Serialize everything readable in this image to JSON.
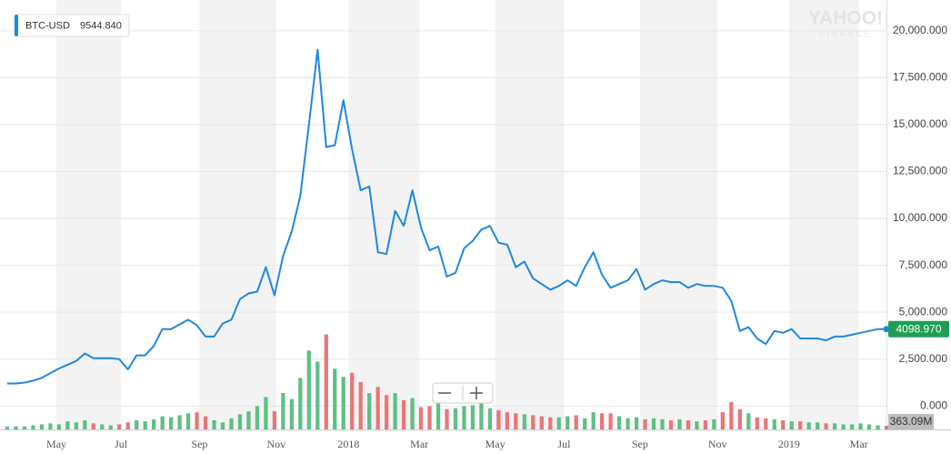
{
  "chart_data": {
    "type": "line",
    "series": [
      {
        "name": "BTC-USD",
        "color": "#1f88e0",
        "legend_value": {
          "value": 9544.84,
          "label": "9544.840"
        },
        "values": [
          1200,
          1200,
          1250,
          1350,
          1500,
          1750,
          2000,
          2200,
          2400,
          2800,
          2550,
          2550,
          2550,
          2500,
          1950,
          2700,
          2700,
          3200,
          4100,
          4100,
          4350,
          4600,
          4300,
          3700,
          3700,
          4400,
          4600,
          5700,
          6000,
          6100,
          7400,
          5900,
          8000,
          9300,
          11200,
          15000,
          19000,
          13800,
          13900,
          16300,
          13700,
          11500,
          11700,
          8200,
          8100,
          10400,
          9600,
          11500,
          9500,
          8300,
          8500,
          6900,
          7100,
          8400,
          8800,
          9400,
          9600,
          8700,
          8600,
          7400,
          7700,
          6800,
          6500,
          6200,
          6400,
          6700,
          6400,
          7400,
          8200,
          7000,
          6300,
          6500,
          6700,
          7300,
          6200,
          6500,
          6700,
          6600,
          6600,
          6300,
          6500,
          6400,
          6400,
          6300,
          5600,
          4000,
          4200,
          3600,
          3300,
          4000,
          3900,
          4100,
          3600,
          3600,
          3600,
          3500,
          3700,
          3700,
          3800,
          3900,
          4000,
          4100,
          4098.97
        ],
        "value_labels": [
          null,
          null,
          null,
          null,
          null,
          null,
          null,
          null,
          null,
          null,
          null,
          null,
          null,
          null,
          null,
          null,
          null,
          null,
          null,
          null,
          null,
          null,
          null,
          null,
          null,
          null,
          null,
          null,
          null,
          null,
          null,
          null,
          null,
          null,
          null,
          null,
          null,
          null,
          null,
          null,
          null,
          null,
          null,
          null,
          null,
          null,
          null,
          null,
          null,
          null,
          null,
          null,
          null,
          null,
          null,
          null,
          null,
          null,
          null,
          null,
          null,
          null,
          null,
          null,
          null,
          null,
          null,
          null,
          null,
          null,
          null,
          null,
          null,
          null,
          null,
          null,
          null,
          null,
          null,
          null,
          null,
          null,
          null,
          null,
          null,
          null,
          null,
          null,
          null,
          null,
          null,
          null,
          null,
          null,
          null,
          null,
          null,
          null,
          null,
          null,
          null,
          null,
          "4098.970"
        ],
        "label_color": "#1f9d55"
      }
    ],
    "volume": {
      "up_color": "#5fbf84",
      "down_color": "#e8777a",
      "label_color": "#bdbdbd",
      "values": [
        300,
        300,
        300,
        400,
        500,
        600,
        500,
        800,
        700,
        900,
        600,
        500,
        400,
        500,
        700,
        900,
        800,
        1000,
        1300,
        1200,
        1400,
        1600,
        1700,
        1300,
        900,
        700,
        1100,
        1500,
        1800,
        2300,
        3200,
        1800,
        3600,
        3000,
        5100,
        7800,
        6700,
        9400,
        6000,
        5200,
        5600,
        4700,
        3600,
        4200,
        3400,
        3600,
        2900,
        3100,
        2200,
        2300,
        2600,
        2000,
        2100,
        2300,
        2400,
        2600,
        2100,
        1900,
        1700,
        1600,
        1500,
        1400,
        1300,
        1200,
        1200,
        1300,
        1400,
        1100,
        1700,
        1600,
        1600,
        1300,
        1100,
        1200,
        1000,
        1100,
        1000,
        900,
        1000,
        900,
        800,
        900,
        1000,
        1700,
        2700,
        2000,
        1600,
        1200,
        1100,
        1000,
        900,
        800,
        800,
        700,
        700,
        600,
        600,
        500,
        500,
        600,
        500,
        400,
        363.09
      ],
      "value_labels": [
        null,
        null,
        null,
        null,
        null,
        null,
        null,
        null,
        null,
        null,
        null,
        null,
        null,
        null,
        null,
        null,
        null,
        null,
        null,
        null,
        null,
        null,
        null,
        null,
        null,
        null,
        null,
        null,
        null,
        null,
        null,
        null,
        null,
        null,
        null,
        null,
        null,
        null,
        null,
        null,
        null,
        null,
        null,
        null,
        null,
        null,
        null,
        null,
        null,
        null,
        null,
        null,
        null,
        null,
        null,
        null,
        null,
        null,
        null,
        null,
        null,
        null,
        null,
        null,
        null,
        null,
        null,
        null,
        null,
        null,
        null,
        null,
        null,
        null,
        null,
        null,
        null,
        null,
        null,
        null,
        null,
        null,
        null,
        null,
        null,
        null,
        null,
        null,
        null,
        null,
        null,
        null,
        null,
        null,
        null,
        null,
        null,
        null,
        null,
        null,
        null,
        null,
        "363.09M"
      ]
    },
    "xlim": [
      0,
      102
    ],
    "xticks": [
      {
        "value": 5.7,
        "label": "May"
      },
      {
        "value": 13.2,
        "label": "Jul"
      },
      {
        "value": 22.3,
        "label": "Sep"
      },
      {
        "value": 31.2,
        "label": "Nov"
      },
      {
        "value": 39.6,
        "label": "2018"
      },
      {
        "value": 47.8,
        "label": "Mar"
      },
      {
        "value": 56.6,
        "label": "May"
      },
      {
        "value": 64.6,
        "label": "Jul"
      },
      {
        "value": 73.4,
        "label": "Sep"
      },
      {
        "value": 82.4,
        "label": "Nov"
      },
      {
        "value": 90.7,
        "label": "2019"
      },
      {
        "value": 98.8,
        "label": "Mar"
      }
    ],
    "ylim": [
      -1250,
      21400
    ],
    "yticks": [
      {
        "value": 0,
        "label": "0.000"
      },
      {
        "value": 2500,
        "label": "2,500.000"
      },
      {
        "value": 5000,
        "label": "5,000.000"
      },
      {
        "value": 7500,
        "label": "7,500.000"
      },
      {
        "value": 10000,
        "label": "10,000.000"
      },
      {
        "value": 12500,
        "label": "12,500.000"
      },
      {
        "value": 15000,
        "label": "15,000.000"
      },
      {
        "value": 17500,
        "label": "17,500.000"
      },
      {
        "value": 20000,
        "label": "20,000.000"
      }
    ],
    "grid": true,
    "watermark": [
      "YAHOO!",
      "FINANCE"
    ]
  }
}
